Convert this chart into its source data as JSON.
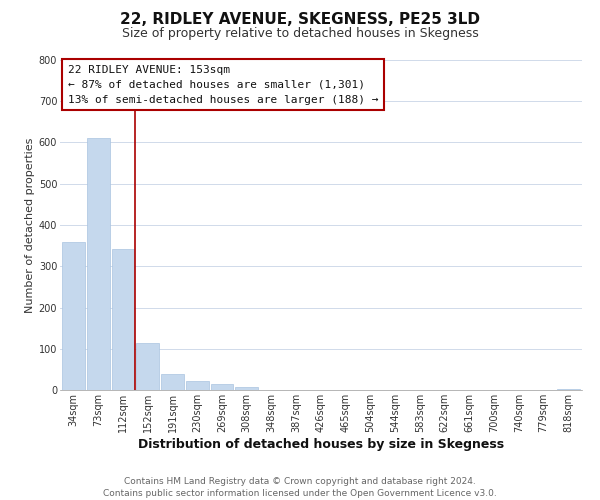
{
  "title": "22, RIDLEY AVENUE, SKEGNESS, PE25 3LD",
  "subtitle": "Size of property relative to detached houses in Skegness",
  "xlabel": "Distribution of detached houses by size in Skegness",
  "ylabel": "Number of detached properties",
  "bar_labels": [
    "34sqm",
    "73sqm",
    "112sqm",
    "152sqm",
    "191sqm",
    "230sqm",
    "269sqm",
    "308sqm",
    "348sqm",
    "387sqm",
    "426sqm",
    "465sqm",
    "504sqm",
    "544sqm",
    "583sqm",
    "622sqm",
    "661sqm",
    "700sqm",
    "740sqm",
    "779sqm",
    "818sqm"
  ],
  "bar_values": [
    358,
    611,
    343,
    114,
    40,
    22,
    14,
    8,
    0,
    0,
    0,
    0,
    0,
    0,
    0,
    0,
    0,
    0,
    0,
    0,
    3
  ],
  "bar_color": "#c5d8ed",
  "bar_edge_color": "#aac4e0",
  "red_line_x": 2.5,
  "red_line_color": "#aa0000",
  "ylim": [
    0,
    800
  ],
  "yticks": [
    0,
    100,
    200,
    300,
    400,
    500,
    600,
    700,
    800
  ],
  "annotation_line1": "22 RIDLEY AVENUE: 153sqm",
  "annotation_line2": "← 87% of detached houses are smaller (1,301)",
  "annotation_line3": "13% of semi-detached houses are larger (188) →",
  "annotation_box_color": "#ffffff",
  "annotation_box_edge_color": "#aa0000",
  "footer_line1": "Contains HM Land Registry data © Crown copyright and database right 2024.",
  "footer_line2": "Contains public sector information licensed under the Open Government Licence v3.0.",
  "background_color": "#ffffff",
  "grid_color": "#d0daea",
  "title_fontsize": 11,
  "subtitle_fontsize": 9,
  "xlabel_fontsize": 9,
  "ylabel_fontsize": 8,
  "tick_fontsize": 7,
  "annotation_fontsize": 8,
  "footer_fontsize": 6.5
}
